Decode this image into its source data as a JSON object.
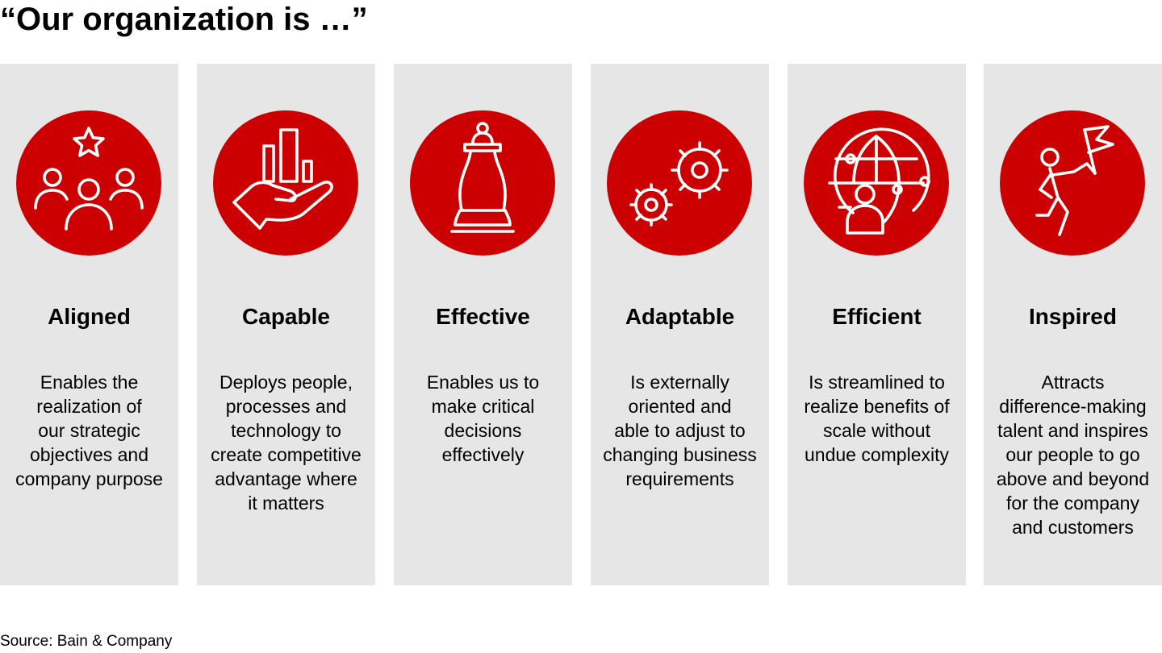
{
  "title": "“Our organization is …”",
  "source": "Source: Bain & Company",
  "colors": {
    "accent": "#cc0000",
    "panel": "#e6e6e7"
  },
  "columns": [
    {
      "icon": "team-star-icon",
      "heading": "Aligned",
      "lines": [
        "Enables the",
        "realization of",
        "our strategic",
        "objectives and",
        "company purpose"
      ]
    },
    {
      "icon": "hand-bar-chart-icon",
      "heading": "Capable",
      "lines": [
        "Deploys people,",
        "processes and",
        "technology to",
        "create competitive",
        "advantage where",
        "it matters"
      ]
    },
    {
      "icon": "chess-pawn-icon",
      "heading": "Effective",
      "lines": [
        "Enables us to",
        "make critical",
        "decisions",
        "effectively"
      ]
    },
    {
      "icon": "gears-icon",
      "heading": "Adaptable",
      "lines": [
        "Is externally",
        "oriented and",
        "able to adjust to",
        "changing business",
        "requirements"
      ]
    },
    {
      "icon": "globe-network-person-icon",
      "heading": "Efficient",
      "lines": [
        "Is streamlined to",
        "realize benefits of",
        "scale without",
        "undue complexity"
      ]
    },
    {
      "icon": "climber-flag-icon",
      "heading": "Inspired",
      "lines": [
        "Attracts",
        "difference-making",
        "talent and inspires",
        "our people to go",
        "above and beyond",
        "for the company",
        "and customers"
      ]
    }
  ]
}
